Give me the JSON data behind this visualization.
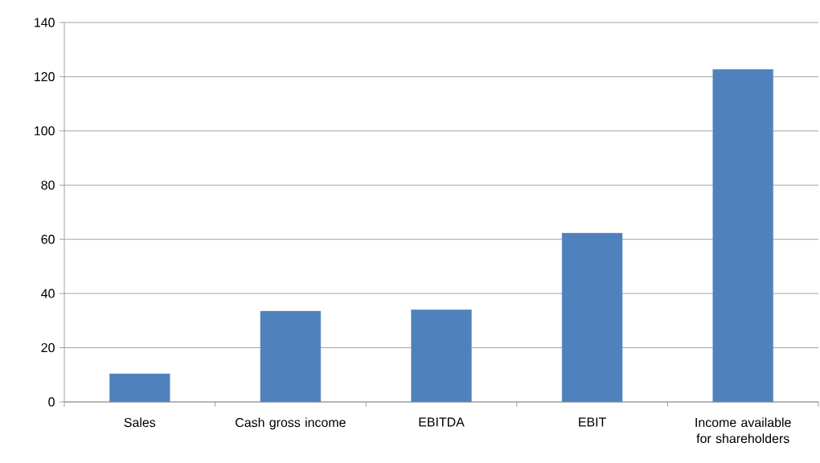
{
  "chart_data": {
    "type": "bar",
    "categories": [
      "Sales",
      "Cash gross income",
      "EBITDA",
      "EBIT",
      "Income available for shareholders"
    ],
    "values": [
      10.4,
      33.5,
      34.0,
      62.3,
      122.7
    ],
    "color": "#4f81bd",
    "ylim": [
      0,
      140
    ],
    "yticks": [
      0,
      20,
      40,
      60,
      80,
      100,
      120,
      140
    ],
    "grid": "y"
  }
}
